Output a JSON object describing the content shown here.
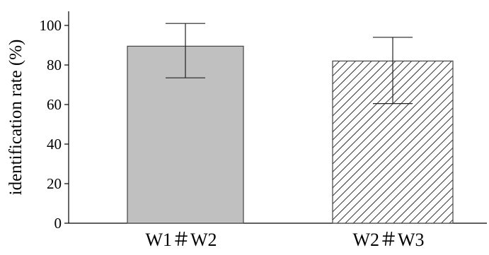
{
  "chart_data": {
    "type": "bar",
    "title": "",
    "xlabel": "",
    "ylabel": "identification rate (%)",
    "ylim": [
      0,
      105
    ],
    "yticks": [
      0,
      20,
      40,
      60,
      80,
      100
    ],
    "categories": [
      "W1＃W2",
      "W2＃W3"
    ],
    "values": [
      89.5,
      82
    ],
    "error_bars": [
      {
        "low": 73.5,
        "high": 101
      },
      {
        "low": 60.5,
        "high": 94
      }
    ],
    "bar_fills": [
      {
        "style": "solid",
        "color": "#c0c0c0"
      },
      {
        "style": "hatched",
        "color": "#000000"
      }
    ],
    "legend": "none",
    "grid": false
  }
}
